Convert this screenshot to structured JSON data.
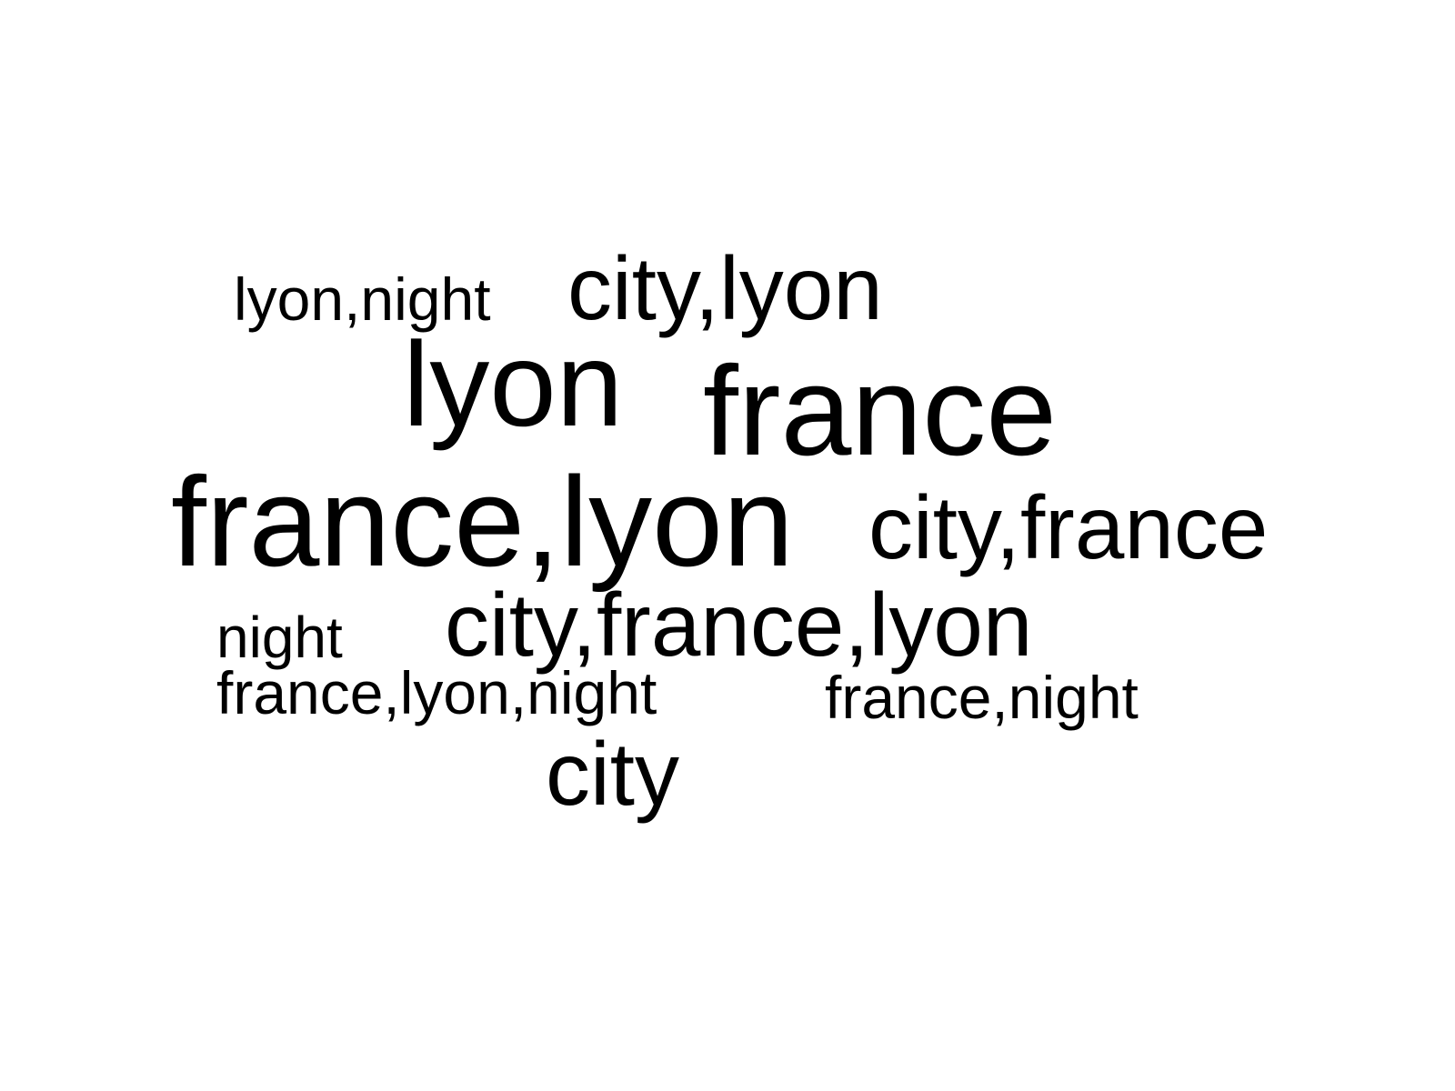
{
  "words": [
    {
      "text": "lyon,night"
    },
    {
      "text": "city,lyon"
    },
    {
      "text": "lyon"
    },
    {
      "text": "france"
    },
    {
      "text": "france,lyon"
    },
    {
      "text": "city,france"
    },
    {
      "text": "night"
    },
    {
      "text": "city,france,lyon"
    },
    {
      "text": "france,lyon,night"
    },
    {
      "text": "france,night"
    },
    {
      "text": "city"
    }
  ],
  "colors": {
    "text": "#000000",
    "background": "#ffffff"
  }
}
